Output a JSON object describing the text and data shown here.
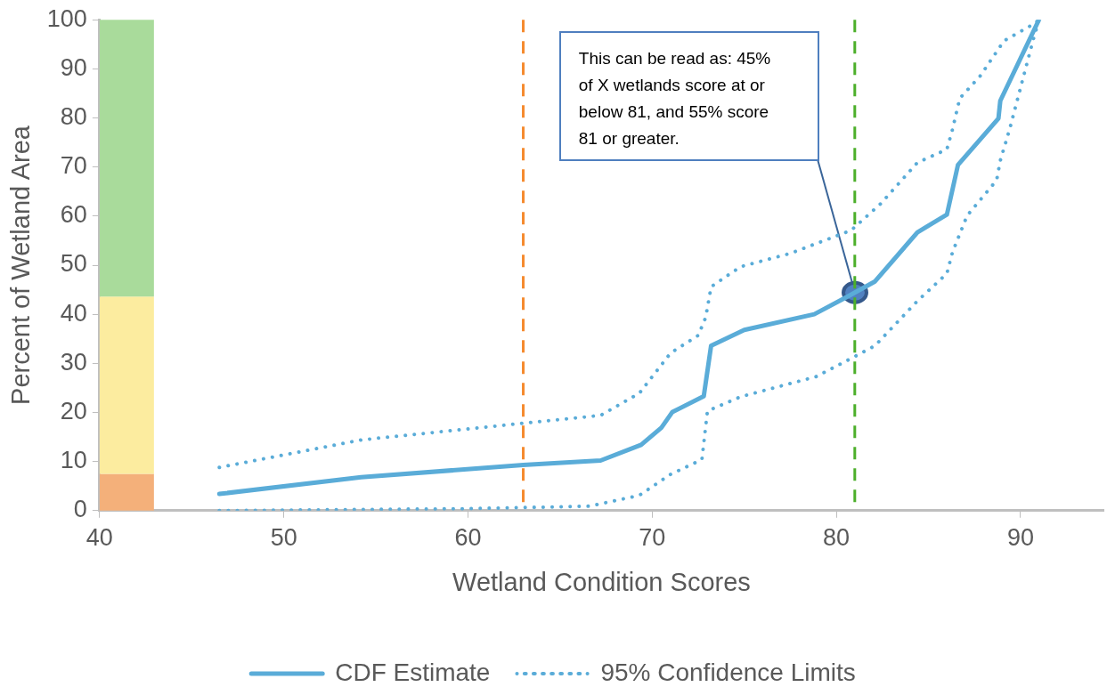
{
  "chart_data": {
    "type": "line",
    "xlabel": "Wetland Condition Scores",
    "ylabel": "Percent of Wetland Area",
    "xlim": [
      40,
      94.5
    ],
    "xticks": [
      40,
      50,
      60,
      70,
      80,
      90
    ],
    "ylim": [
      0,
      100
    ],
    "yticks": [
      0,
      10,
      20,
      30,
      40,
      50,
      60,
      70,
      80,
      90,
      100
    ],
    "legend": "bottom",
    "marker": "none",
    "line_style": "solid",
    "series": [
      {
        "name": "CDF Estimate",
        "color": "#5aacd8",
        "x": [
          46.5,
          54.2,
          63,
          67.2,
          69.4,
          70.5,
          71.1,
          72.8,
          73.2,
          75.0,
          78.8,
          80.7,
          82.1,
          84.4,
          86.0,
          86.6,
          88.8,
          88.9,
          91.0
        ],
        "values": [
          3.4,
          6.8,
          9.3,
          10.2,
          13.4,
          16.9,
          20.1,
          23.3,
          33.6,
          36.8,
          40.0,
          43.8,
          46.7,
          56.7,
          60.3,
          70.4,
          79.9,
          83.5,
          100
        ]
      },
      {
        "name": "95% Confidence Limits",
        "color": "#5aacd8",
        "line_style": "dotted",
        "x": [
          46.5,
          54.2,
          63,
          67.2,
          69.3,
          71.0,
          72.5,
          72.9,
          73.2,
          74.8,
          77.5,
          80.8,
          82.4,
          84.4,
          86.0,
          86.3,
          86.7,
          87.8,
          89.1,
          90.7,
          91.0
        ],
        "values": [
          8.8,
          14.4,
          17.8,
          19.4,
          23.9,
          32.1,
          35.7,
          39.3,
          45.6,
          49.7,
          52.4,
          57.1,
          62.5,
          70.9,
          73.6,
          77.6,
          84.0,
          88.5,
          95.7,
          99.1,
          100
        ]
      },
      {
        "color": "#5aacd8",
        "line_style": "dotted",
        "x": [
          46.5,
          60,
          66.6,
          69.3,
          71.0,
          72.7,
          73.0,
          74.8,
          78.9,
          80.9,
          82.1,
          84.4,
          86.0,
          86.3,
          87.1,
          88.7,
          88.9,
          89.4,
          90.1,
          90.7,
          91.0
        ],
        "values": [
          0,
          0.4,
          0.9,
          3.1,
          7.4,
          10.4,
          20.3,
          23.2,
          27.3,
          31.2,
          33.6,
          42.7,
          48.3,
          52.6,
          60.1,
          67.3,
          71.3,
          77.6,
          87.6,
          96.1,
          100
        ]
      }
    ],
    "ref_lines": [
      {
        "axis": "x",
        "value": 63,
        "color": "#f58a2e",
        "line_style": "dashed"
      },
      {
        "axis": "x",
        "value": 81,
        "color": "#4caf2a",
        "line_style": "dashed"
      }
    ],
    "bands": [
      {
        "axis": "y",
        "from": 0,
        "to": 7.5,
        "color": "#f4b07a"
      },
      {
        "axis": "y",
        "from": 7.5,
        "to": 43.6,
        "color": "#fcec9f"
      },
      {
        "axis": "y",
        "from": 43.6,
        "to": 100,
        "color": "#a9db9b"
      }
    ],
    "annotations": [
      "This can be read as: 45% of X wetlands score at or below 81, and 55% score 81 or greater."
    ]
  }
}
